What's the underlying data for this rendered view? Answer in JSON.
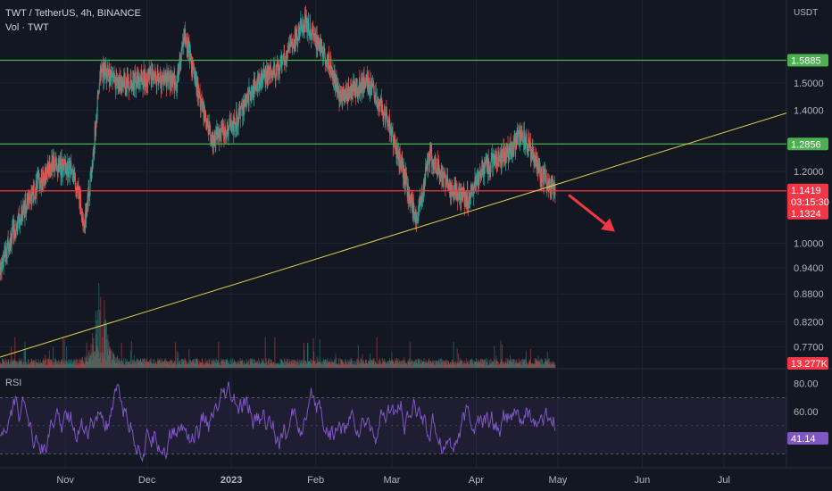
{
  "header": {
    "symbol": "TWT / TetherUS, 4h, BINANCE",
    "volume_label": "Vol · TWT"
  },
  "price_axis": {
    "currency": "USDT"
  },
  "chart_data": {
    "type": "candlestick",
    "price_scale": "log",
    "ylim": [
      0.73,
      1.85
    ],
    "y_ticks": [
      "1.5000",
      "1.4000",
      "1.2000",
      "1.0000",
      "0.9400",
      "0.8800",
      "0.8200",
      "0.7700"
    ],
    "x_ticks": [
      "Nov",
      "Dec",
      "2023",
      "Feb",
      "Mar",
      "Apr",
      "May",
      "Jun",
      "Jul"
    ],
    "x_tick_dates": [
      "2022-11-01",
      "2022-12-01",
      "2023-01-01",
      "2023-02-01",
      "2023-03-01",
      "2023-04-01",
      "2023-05-01",
      "2023-06-01",
      "2023-07-01"
    ],
    "x_range": [
      "2022-10-08",
      "2023-07-24"
    ],
    "last_candle_date": "2023-04-30",
    "price_path": [
      [
        "2022-10-08",
        0.94
      ],
      [
        "2022-10-14",
        1.05
      ],
      [
        "2022-10-20",
        1.14
      ],
      [
        "2022-10-27",
        1.22
      ],
      [
        "2022-11-04",
        1.2
      ],
      [
        "2022-11-08",
        1.05
      ],
      [
        "2022-11-11",
        1.22
      ],
      [
        "2022-11-14",
        1.55
      ],
      [
        "2022-11-20",
        1.5
      ],
      [
        "2022-12-01",
        1.52
      ],
      [
        "2022-12-12",
        1.5
      ],
      [
        "2022-12-15",
        1.7
      ],
      [
        "2022-12-20",
        1.45
      ],
      [
        "2022-12-25",
        1.3
      ],
      [
        "2023-01-02",
        1.35
      ],
      [
        "2023-01-10",
        1.5
      ],
      [
        "2023-01-18",
        1.55
      ],
      [
        "2023-01-28",
        1.75
      ],
      [
        "2023-02-05",
        1.6
      ],
      [
        "2023-02-10",
        1.45
      ],
      [
        "2023-02-20",
        1.5
      ],
      [
        "2023-02-26",
        1.4
      ],
      [
        "2023-03-05",
        1.2
      ],
      [
        "2023-03-10",
        1.05
      ],
      [
        "2023-03-15",
        1.25
      ],
      [
        "2023-03-22",
        1.15
      ],
      [
        "2023-03-29",
        1.12
      ],
      [
        "2023-04-05",
        1.22
      ],
      [
        "2023-04-12",
        1.25
      ],
      [
        "2023-04-18",
        1.32
      ],
      [
        "2023-04-24",
        1.2
      ],
      [
        "2023-04-30",
        1.14
      ]
    ],
    "horizontal_levels": [
      {
        "price": 1.5885,
        "label": "1.5885",
        "color": "#4caf50"
      },
      {
        "price": 1.2856,
        "label": "1.2856",
        "color": "#4caf50"
      },
      {
        "price": 1.1419,
        "label": "1.1419",
        "color": "#f23645"
      }
    ],
    "trendline": {
      "color": "#e2d24a",
      "from": [
        "2022-10-08",
        0.75
      ],
      "to": [
        "2023-07-24",
        1.39
      ]
    },
    "arrow": {
      "color": "#f23645",
      "from": [
        "2023-05-05",
        1.13
      ],
      "to": [
        "2023-05-22",
        1.03
      ]
    },
    "last_price": {
      "value": "1.1419",
      "countdown": "03:15:30",
      "prev": "1.1324",
      "color": "#f23645"
    },
    "volume": {
      "last_value": "13.277K",
      "peak_date": "2022-11-14"
    },
    "rsi": {
      "label": "RSI",
      "value": "41.14",
      "upper_band": 70,
      "lower_band": 30,
      "ylim": [
        20,
        90
      ],
      "ticks": [
        "80.00",
        "60.00"
      ],
      "color": "#7e57c2"
    },
    "colors": {
      "background": "#131722",
      "up": "#26a69a",
      "down": "#ef5350",
      "grid": "#1f2330",
      "text": "#b2b5be"
    }
  }
}
